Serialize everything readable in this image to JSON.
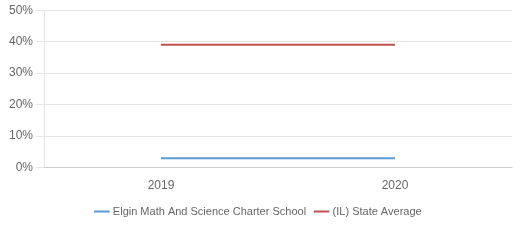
{
  "chart_data": {
    "type": "line",
    "x": [
      2019,
      2020
    ],
    "series": [
      {
        "name": "Elgin Math And Science Charter School",
        "color": "#5b9bd5",
        "values": [
          3,
          3
        ]
      },
      {
        "name": "(IL) State Average",
        "color": "#c0504d",
        "values": [
          39,
          39
        ]
      }
    ],
    "xlim": [
      2018.5,
      2020.5
    ],
    "xticks": [
      2019,
      2020
    ],
    "ylim": [
      0,
      50
    ],
    "yticks": [
      {
        "value": 0,
        "label": "0%"
      },
      {
        "value": 10,
        "label": "10%"
      },
      {
        "value": 20,
        "label": "20%"
      },
      {
        "value": 30,
        "label": "30%"
      },
      {
        "value": 40,
        "label": "40%"
      },
      {
        "value": 50,
        "label": "50%"
      }
    ],
    "grid": "y",
    "legend": "bottom"
  }
}
